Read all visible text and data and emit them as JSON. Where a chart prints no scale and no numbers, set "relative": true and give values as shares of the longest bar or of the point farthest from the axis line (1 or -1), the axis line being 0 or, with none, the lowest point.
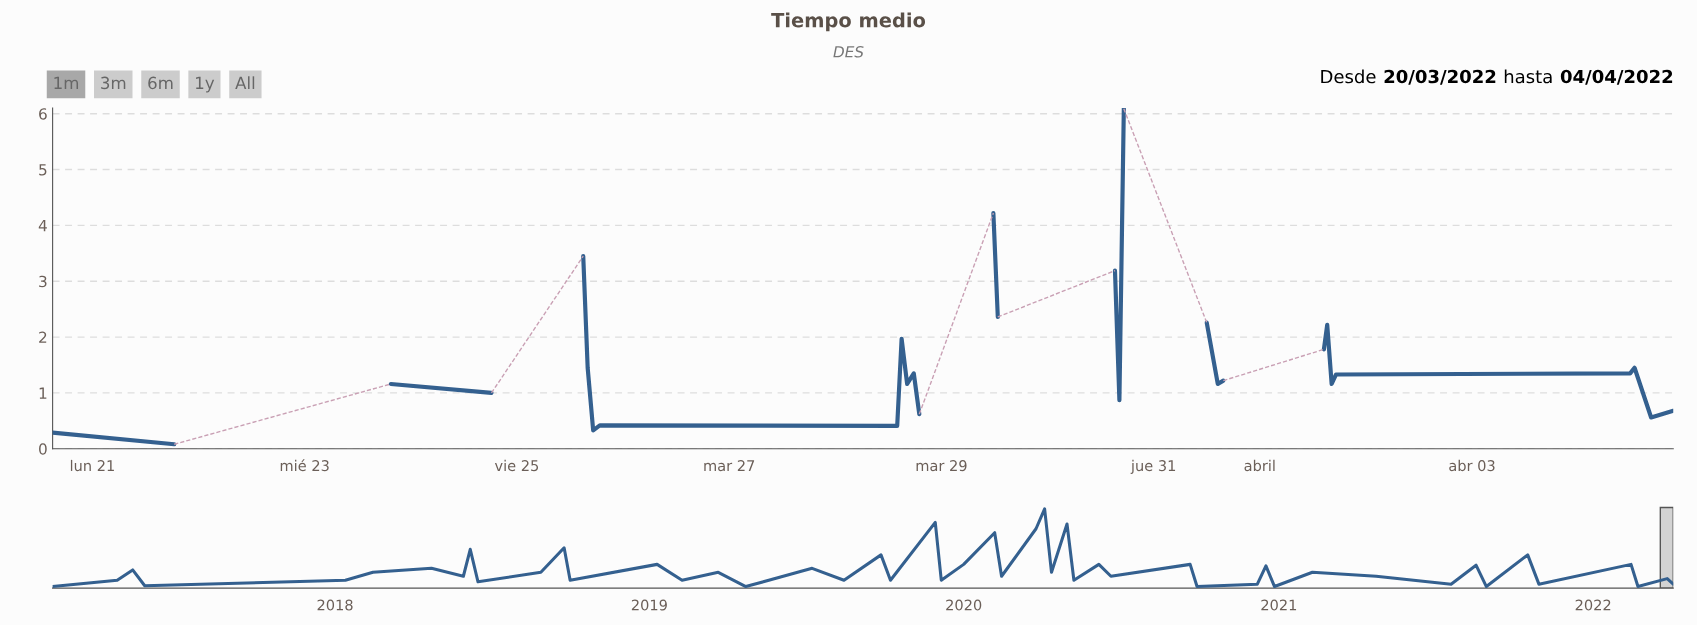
{
  "chart_data": [
    {
      "type": "line",
      "title": "Tiempo medio",
      "subtitle": "DES",
      "annotations": [
        "1m",
        "3m",
        "6m",
        "1y",
        "All",
        "Desde",
        "20/03/2022",
        "hasta",
        "04/04/2022"
      ],
      "series": [
        {
          "color": "#34608f",
          "x": [
            "2022-03-20T15:00",
            "2022-03-21T18:30"
          ],
          "values": [
            0.29,
            0.08
          ]
        },
        {
          "color": "#34608f",
          "x": [
            "2022-03-23T19:30",
            "2022-03-24T18:15"
          ],
          "values": [
            1.16,
            1.0
          ]
        },
        {
          "color": "#34608f",
          "x": [
            "2022-03-25T15:00",
            "2022-03-25T16:00",
            "2022-03-25T17:15",
            "2022-03-25T18:45",
            "2022-03-28T14:00",
            "2022-03-28T15:00",
            "2022-03-28T16:15",
            "2022-03-28T17:45",
            "2022-03-28T19:00"
          ],
          "values": [
            3.45,
            1.45,
            0.33,
            0.42,
            0.41,
            1.97,
            1.16,
            1.35,
            0.62
          ]
        },
        {
          "color": "#34608f",
          "x": [
            "2022-03-29T11:45",
            "2022-03-29T12:45"
          ],
          "values": [
            4.22,
            2.36
          ]
        },
        {
          "color": "#34608f",
          "x": [
            "2022-03-30T15:15",
            "2022-03-30T16:15",
            "2022-03-30T17:15"
          ],
          "values": [
            3.19,
            0.87,
            6.09
          ]
        },
        {
          "color": "#34608f",
          "x": [
            "2022-03-31T12:00",
            "2022-03-31T14:30",
            "2022-03-31T15:45"
          ],
          "values": [
            2.26,
            1.16,
            1.22
          ]
        },
        {
          "color": "#34608f",
          "x": [
            "2022-04-01T14:30",
            "2022-04-01T15:15",
            "2022-04-01T16:15",
            "2022-04-01T17:15",
            "2022-04-04T11:45",
            "2022-04-04T12:45",
            "2022-04-04T16:30",
            "2022-04-04T21:30"
          ],
          "values": [
            1.78,
            2.22,
            1.16,
            1.33,
            1.35,
            1.45,
            0.56,
            0.68
          ]
        },
        {
          "color": "#c9a0b4",
          "line_style": "dashed",
          "x": [
            "2022-03-21T18:30",
            "2022-03-23T19:30"
          ],
          "values": [
            0.08,
            1.16
          ]
        },
        {
          "color": "#c9a0b4",
          "line_style": "dashed",
          "x": [
            "2022-03-24T18:15",
            "2022-03-25T15:00"
          ],
          "values": [
            1.0,
            3.45
          ]
        },
        {
          "color": "#c9a0b4",
          "line_style": "dashed",
          "x": [
            "2022-03-28T19:00",
            "2022-03-29T11:45"
          ],
          "values": [
            0.62,
            4.22
          ]
        },
        {
          "color": "#c9a0b4",
          "line_style": "dashed",
          "x": [
            "2022-03-29T12:45",
            "2022-03-30T15:15"
          ],
          "values": [
            2.36,
            3.19
          ]
        },
        {
          "color": "#c9a0b4",
          "line_style": "dashed",
          "x": [
            "2022-03-30T17:15",
            "2022-03-31T12:00"
          ],
          "values": [
            6.09,
            2.26
          ]
        },
        {
          "color": "#c9a0b4",
          "line_style": "dashed",
          "x": [
            "2022-03-31T15:45",
            "2022-04-01T14:30"
          ],
          "values": [
            1.22,
            1.78
          ]
        }
      ],
      "xlim": [
        "2022-03-20T15:00",
        "2022-04-04T21:30"
      ],
      "xticks": [
        {
          "value": "2022-03-21",
          "label": "lun 21"
        },
        {
          "value": "2022-03-23",
          "label": "mié 23"
        },
        {
          "value": "2022-03-25",
          "label": "vie 25"
        },
        {
          "value": "2022-03-27",
          "label": "mar 27"
        },
        {
          "value": "2022-03-29",
          "label": "mar 29"
        },
        {
          "value": "2022-03-31",
          "label": "jue 31"
        },
        {
          "value": "2022-04-01",
          "label": "abril"
        },
        {
          "value": "2022-04-03",
          "label": "abr 03"
        }
      ],
      "ylim": [
        0,
        6.1
      ],
      "yticks": [
        0,
        1,
        2,
        3,
        4,
        5,
        6
      ],
      "grid": "y",
      "legend": false
    },
    {
      "type": "line",
      "relative": true,
      "tick_labels": "x",
      "legend": false,
      "series": [
        {
          "color": "#34608f",
          "x": [
            "2017-02-07",
            "2017-04-23",
            "2017-05-11",
            "2017-05-25",
            "2018-01-13",
            "2018-02-14",
            "2018-04-23",
            "2018-05-30",
            "2018-06-07",
            "2018-06-16",
            "2018-08-28",
            "2018-09-24",
            "2018-10-01",
            "2019-01-10",
            "2019-02-08",
            "2019-03-22",
            "2019-04-23",
            "2019-07-09",
            "2019-08-15",
            "2019-09-27",
            "2019-10-08",
            "2019-11-29",
            "2019-12-06",
            "2020-01-01",
            "2020-02-06",
            "2020-02-14",
            "2020-03-25",
            "2020-04-04",
            "2020-04-12",
            "2020-04-30",
            "2020-05-08",
            "2020-06-06",
            "2020-06-20",
            "2020-09-20",
            "2020-09-28",
            "2020-12-07",
            "2020-12-17",
            "2020-12-27",
            "2021-02-09",
            "2021-04-24",
            "2021-07-20",
            "2021-08-18",
            "2021-08-30",
            "2021-10-17",
            "2021-10-30",
            "2022-02-14",
            "2022-02-22",
            "2022-03-28",
            "2022-04-04"
          ],
          "values": [
            0.02,
            0.1,
            0.23,
            0.03,
            0.1,
            0.2,
            0.25,
            0.15,
            0.49,
            0.08,
            0.2,
            0.51,
            0.1,
            0.3,
            0.1,
            0.2,
            0.02,
            0.25,
            0.1,
            0.42,
            0.1,
            0.83,
            0.1,
            0.3,
            0.7,
            0.15,
            0.75,
            1.0,
            0.2,
            0.81,
            0.1,
            0.3,
            0.15,
            0.3,
            0.02,
            0.05,
            0.28,
            0.02,
            0.2,
            0.15,
            0.05,
            0.29,
            0.02,
            0.42,
            0.05,
            0.3,
            0.02,
            0.12,
            0.05
          ]
        }
      ],
      "bands": [
        {
          "axis": "x",
          "from": "2022-03-20",
          "to": "2022-04-04",
          "color": "#d3d3d3"
        }
      ],
      "xlim": [
        "2017-02-07",
        "2022-04-04"
      ],
      "xticks": [
        {
          "value": "2018",
          "label": "2018"
        },
        {
          "value": "2019",
          "label": "2019"
        },
        {
          "value": "2020",
          "label": "2020"
        },
        {
          "value": "2021",
          "label": "2021"
        },
        {
          "value": "2022",
          "label": "2022"
        }
      ]
    }
  ]
}
